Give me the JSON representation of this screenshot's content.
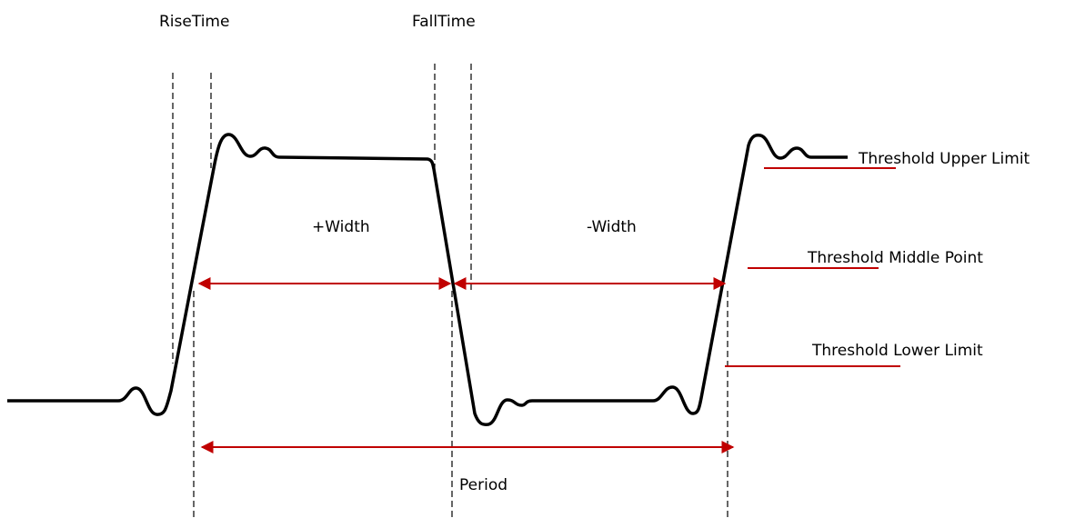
{
  "labels": {
    "rise_time": "RiseTime",
    "fall_time": "FallTime",
    "plus_width": "+Width",
    "minus_width": "-Width",
    "upper_limit": "Threshold Upper Limit",
    "middle_point": "Threshold Middle Point",
    "lower_limit": "Threshold Lower Limit",
    "period": "Period"
  }
}
